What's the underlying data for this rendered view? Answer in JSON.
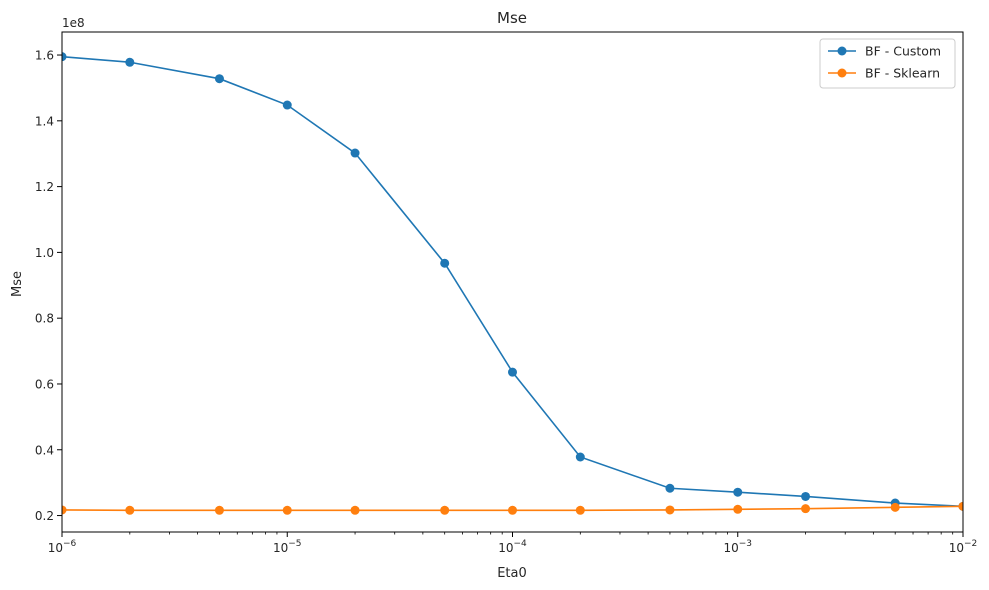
{
  "chart_data": {
    "type": "line",
    "title": "Mse",
    "xlabel": "Eta0",
    "ylabel": "Mse",
    "x_scale": "log",
    "xlim": [
      1e-06,
      0.01
    ],
    "ylim": [
      15000000,
      167000000
    ],
    "y_offset_text": "1e8",
    "x_ticks": [
      {
        "value": 1e-06,
        "base": "10",
        "exp": "−6"
      },
      {
        "value": 1e-05,
        "base": "10",
        "exp": "−5"
      },
      {
        "value": 0.0001,
        "base": "10",
        "exp": "−4"
      },
      {
        "value": 0.001,
        "base": "10",
        "exp": "−3"
      },
      {
        "value": 0.01,
        "base": "10",
        "exp": "−2"
      }
    ],
    "y_ticks": [
      {
        "value": 20000000,
        "label": "0.2"
      },
      {
        "value": 40000000,
        "label": "0.4"
      },
      {
        "value": 60000000,
        "label": "0.6"
      },
      {
        "value": 80000000,
        "label": "0.8"
      },
      {
        "value": 100000000,
        "label": "1.0"
      },
      {
        "value": 120000000,
        "label": "1.2"
      },
      {
        "value": 140000000,
        "label": "1.4"
      },
      {
        "value": 160000000,
        "label": "1.6"
      }
    ],
    "grid": false,
    "legend_position": "top-right",
    "x": [
      1e-06,
      2e-06,
      5e-06,
      1e-05,
      2e-05,
      5e-05,
      0.0001,
      0.0002,
      0.0005,
      0.001,
      0.002,
      0.005,
      0.01
    ],
    "series": [
      {
        "name": "BF - Custom",
        "color": "#1f77b4",
        "values": [
          159500000,
          157800000,
          152800000,
          144800000,
          130200000,
          96700000,
          63600000,
          37800000,
          28300000,
          27100000,
          25800000,
          23800000,
          22800000
        ]
      },
      {
        "name": "BF - Sklearn",
        "color": "#ff7f0e",
        "values": [
          21700000,
          21600000,
          21600000,
          21600000,
          21600000,
          21600000,
          21600000,
          21600000,
          21700000,
          21900000,
          22100000,
          22500000,
          22800000
        ]
      }
    ]
  }
}
